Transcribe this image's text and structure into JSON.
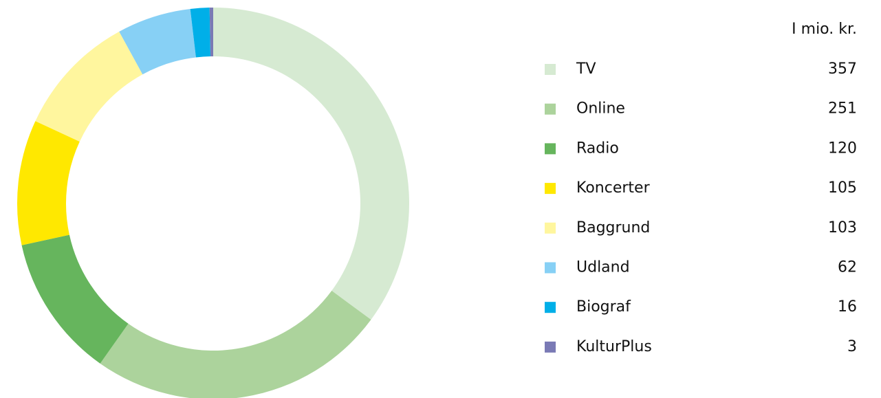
{
  "chart_data": {
    "type": "donut",
    "unit_label": "I mio. kr.",
    "categories": [
      "TV",
      "Online",
      "Radio",
      "Koncerter",
      "Baggrund",
      "Udland",
      "Biograf",
      "KulturPlus"
    ],
    "values": [
      357,
      251,
      120,
      105,
      103,
      62,
      16,
      3
    ],
    "colors": [
      "#d6ead2",
      "#acd39c",
      "#66b55d",
      "#ffe800",
      "#fff69e",
      "#87d0f5",
      "#00afe8",
      "#7a7ab5"
    ]
  }
}
